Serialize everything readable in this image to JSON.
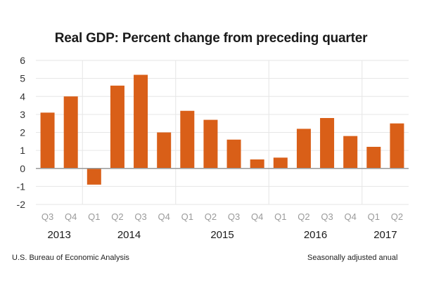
{
  "chart_data": {
    "type": "bar",
    "title": "Real GDP:  Percent change from preceding quarter",
    "xlabel": "",
    "ylabel": "",
    "ylim": [
      -2,
      6
    ],
    "yticks": [
      6,
      5,
      4,
      3,
      2,
      1,
      0,
      -1,
      -2
    ],
    "grid": true,
    "legend": "none",
    "bar_color": "#D95F18",
    "categories": [
      "Q3",
      "Q4",
      "Q1",
      "Q2",
      "Q3",
      "Q4",
      "Q1",
      "Q2",
      "Q3",
      "Q4",
      "Q1",
      "Q2",
      "Q3",
      "Q4",
      "Q1",
      "Q2"
    ],
    "years": [
      {
        "label": "2013",
        "start": 0,
        "end": 1
      },
      {
        "label": "2014",
        "start": 2,
        "end": 5
      },
      {
        "label": "2015",
        "start": 6,
        "end": 9
      },
      {
        "label": "2016",
        "start": 10,
        "end": 13
      },
      {
        "label": "2017",
        "start": 14,
        "end": 15
      }
    ],
    "series": [
      {
        "name": "Real GDP % change",
        "values": [
          3.1,
          4.0,
          -0.9,
          4.6,
          5.2,
          2.0,
          3.2,
          2.7,
          1.6,
          0.5,
          0.6,
          2.2,
          2.8,
          1.8,
          1.2,
          2.5
        ]
      }
    ]
  },
  "footer": {
    "source": "U.S. Bureau of Economic Analysis",
    "note": "Seasonally adjusted anual"
  }
}
